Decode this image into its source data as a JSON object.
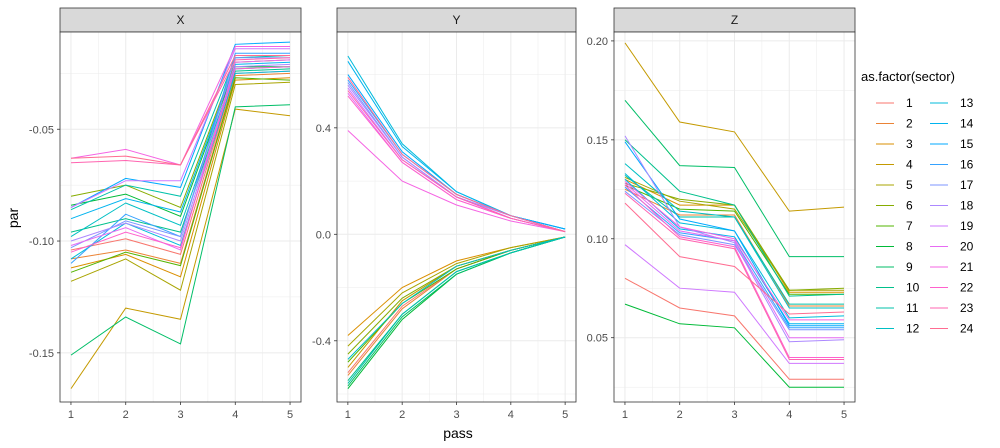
{
  "chart_data": {
    "type": "line",
    "xlabel": "pass",
    "ylabel": "par",
    "x": [
      1,
      2,
      3,
      4,
      5
    ],
    "legend": {
      "title": "as.factor(sector)",
      "placement": "right",
      "entries": [
        "1",
        "2",
        "3",
        "4",
        "5",
        "6",
        "7",
        "8",
        "9",
        "10",
        "11",
        "12",
        "13",
        "14",
        "15",
        "16",
        "17",
        "18",
        "19",
        "20",
        "21",
        "22",
        "23",
        "24"
      ]
    },
    "colors": [
      "#F8766D",
      "#EB8335",
      "#DA8F00",
      "#C49A00",
      "#A9A400",
      "#86AC00",
      "#53B400",
      "#00BA38",
      "#00BE67",
      "#00C08B",
      "#00C1AA",
      "#00BFC4",
      "#00BBDB",
      "#00B4EF",
      "#00A9FF",
      "#35A2FF",
      "#7C96FF",
      "#AC88FF",
      "#CF78FF",
      "#E76BF3",
      "#F564E3",
      "#FF61CC",
      "#FF64B0",
      "#FF6C91"
    ],
    "grid": true,
    "panels": [
      {
        "strip": "X",
        "ylim": [
          -0.172,
          -0.0065
        ],
        "yticks": [
          -0.15,
          -0.1,
          -0.05
        ],
        "ytick_labels": [
          "-0.15",
          "-0.10",
          "-0.05"
        ],
        "series": [
          {
            "name": "1",
            "values": [
              -0.104,
              -0.099,
              -0.106,
              -0.025,
              -0.024
            ]
          },
          {
            "name": "2",
            "values": [
              -0.108,
              -0.104,
              -0.11,
              -0.026,
              -0.025
            ]
          },
          {
            "name": "3",
            "values": [
              -0.112,
              -0.106,
              -0.116,
              -0.028,
              -0.027
            ]
          },
          {
            "name": "4",
            "values": [
              -0.166,
              -0.13,
              -0.135,
              -0.041,
              -0.044
            ]
          },
          {
            "name": "5",
            "values": [
              -0.118,
              -0.108,
              -0.122,
              -0.03,
              -0.029
            ]
          },
          {
            "name": "6",
            "values": [
              -0.08,
              -0.075,
              -0.085,
              -0.02,
              -0.019
            ]
          },
          {
            "name": "7",
            "values": [
              -0.114,
              -0.105,
              -0.111,
              -0.027,
              -0.028
            ]
          },
          {
            "name": "8",
            "values": [
              -0.084,
              -0.079,
              -0.089,
              -0.022,
              -0.022
            ]
          },
          {
            "name": "9",
            "values": [
              -0.151,
              -0.134,
              -0.146,
              -0.04,
              -0.039
            ]
          },
          {
            "name": "10",
            "values": [
              -0.096,
              -0.09,
              -0.096,
              -0.024,
              -0.023
            ]
          },
          {
            "name": "11",
            "values": [
              -0.086,
              -0.075,
              -0.08,
              -0.018,
              -0.017
            ]
          },
          {
            "name": "12",
            "values": [
              -0.098,
              -0.083,
              -0.093,
              -0.023,
              -0.022
            ]
          },
          {
            "name": "13",
            "values": [
              -0.108,
              -0.092,
              -0.102,
              -0.025,
              -0.024
            ]
          },
          {
            "name": "14",
            "values": [
              -0.09,
              -0.081,
              -0.087,
              -0.021,
              -0.02
            ]
          },
          {
            "name": "15",
            "values": [
              -0.085,
              -0.072,
              -0.076,
              -0.012,
              -0.011
            ]
          },
          {
            "name": "16",
            "values": [
              -0.11,
              -0.088,
              -0.098,
              -0.016,
              -0.016
            ]
          },
          {
            "name": "17",
            "values": [
              -0.103,
              -0.091,
              -0.098,
              -0.018,
              -0.018
            ]
          },
          {
            "name": "18",
            "values": [
              -0.1,
              -0.092,
              -0.1,
              -0.022,
              -0.021
            ]
          },
          {
            "name": "19",
            "values": [
              -0.085,
              -0.073,
              -0.073,
              -0.014,
              -0.014
            ]
          },
          {
            "name": "20",
            "values": [
              -0.102,
              -0.094,
              -0.104,
              -0.02,
              -0.019
            ]
          },
          {
            "name": "21",
            "values": [
              -0.063,
              -0.059,
              -0.066,
              -0.013,
              -0.013
            ]
          },
          {
            "name": "22",
            "values": [
              -0.105,
              -0.096,
              -0.103,
              -0.023,
              -0.022
            ]
          },
          {
            "name": "23",
            "values": [
              -0.065,
              -0.064,
              -0.066,
              -0.019,
              -0.018
            ]
          },
          {
            "name": "24",
            "values": [
              -0.063,
              -0.062,
              -0.066,
              -0.017,
              -0.017
            ]
          }
        ]
      },
      {
        "strip": "Y",
        "ylim": [
          -0.63,
          0.76
        ],
        "yticks": [
          -0.4,
          0.0,
          0.4
        ],
        "ytick_labels": [
          "-0.4",
          "0.0",
          "0.4"
        ],
        "series": [
          {
            "name": "1",
            "values": [
              -0.52,
              -0.27,
              -0.13,
              -0.06,
              -0.01
            ]
          },
          {
            "name": "2",
            "values": [
              -0.53,
              -0.28,
              -0.13,
              -0.06,
              -0.01
            ]
          },
          {
            "name": "3",
            "values": [
              -0.38,
              -0.2,
              -0.1,
              -0.05,
              -0.01
            ]
          },
          {
            "name": "4",
            "values": [
              -0.5,
              -0.25,
              -0.12,
              -0.06,
              -0.01
            ]
          },
          {
            "name": "5",
            "values": [
              -0.42,
              -0.22,
              -0.11,
              -0.05,
              -0.01
            ]
          },
          {
            "name": "6",
            "values": [
              -0.45,
              -0.24,
              -0.12,
              -0.06,
              -0.01
            ]
          },
          {
            "name": "7",
            "values": [
              -0.48,
              -0.26,
              -0.13,
              -0.06,
              -0.01
            ]
          },
          {
            "name": "8",
            "values": [
              -0.58,
              -0.32,
              -0.15,
              -0.07,
              -0.01
            ]
          },
          {
            "name": "9",
            "values": [
              -0.57,
              -0.31,
              -0.15,
              -0.07,
              -0.01
            ]
          },
          {
            "name": "10",
            "values": [
              -0.55,
              -0.3,
              -0.14,
              -0.07,
              -0.01
            ]
          },
          {
            "name": "11",
            "values": [
              -0.56,
              -0.3,
              -0.14,
              -0.07,
              -0.01
            ]
          },
          {
            "name": "12",
            "values": [
              -0.47,
              -0.26,
              -0.12,
              -0.06,
              -0.01
            ]
          },
          {
            "name": "13",
            "values": [
              0.67,
              0.34,
              0.16,
              0.07,
              0.02
            ]
          },
          {
            "name": "14",
            "values": [
              0.65,
              0.33,
              0.16,
              0.07,
              0.02
            ]
          },
          {
            "name": "15",
            "values": [
              0.6,
              0.31,
              0.15,
              0.07,
              0.02
            ]
          },
          {
            "name": "16",
            "values": [
              0.58,
              0.3,
              0.15,
              0.07,
              0.01
            ]
          },
          {
            "name": "17",
            "values": [
              0.57,
              0.29,
              0.14,
              0.07,
              0.01
            ]
          },
          {
            "name": "18",
            "values": [
              0.56,
              0.29,
              0.14,
              0.07,
              0.01
            ]
          },
          {
            "name": "19",
            "values": [
              0.55,
              0.28,
              0.14,
              0.06,
              0.01
            ]
          },
          {
            "name": "20",
            "values": [
              0.53,
              0.27,
              0.13,
              0.06,
              0.01
            ]
          },
          {
            "name": "21",
            "values": [
              0.39,
              0.2,
              0.11,
              0.05,
              0.01
            ]
          },
          {
            "name": "22",
            "values": [
              0.52,
              0.27,
              0.13,
              0.06,
              0.01
            ]
          },
          {
            "name": "23",
            "values": [
              0.54,
              0.28,
              0.14,
              0.06,
              0.01
            ]
          },
          {
            "name": "24",
            "values": [
              0.59,
              0.3,
              0.15,
              0.07,
              0.01
            ]
          }
        ]
      },
      {
        "strip": "Z",
        "ylim": [
          0.0175,
          0.2045
        ],
        "yticks": [
          0.05,
          0.1,
          0.15,
          0.2
        ],
        "ytick_labels": [
          "0.05",
          "0.10",
          "0.15",
          "0.20"
        ],
        "series": [
          {
            "name": "1",
            "values": [
              0.08,
              0.065,
              0.061,
              0.029,
              0.029
            ]
          },
          {
            "name": "2",
            "values": [
              0.125,
              0.112,
              0.112,
              0.066,
              0.066
            ]
          },
          {
            "name": "3",
            "values": [
              0.13,
              0.117,
              0.117,
              0.073,
              0.073
            ]
          },
          {
            "name": "4",
            "values": [
              0.199,
              0.159,
              0.154,
              0.114,
              0.116
            ]
          },
          {
            "name": "5",
            "values": [
              0.131,
              0.119,
              0.115,
              0.074,
              0.074
            ]
          },
          {
            "name": "6",
            "values": [
              0.128,
              0.12,
              0.117,
              0.074,
              0.075
            ]
          },
          {
            "name": "7",
            "values": [
              0.127,
              0.115,
              0.114,
              0.072,
              0.072
            ]
          },
          {
            "name": "8",
            "values": [
              0.067,
              0.057,
              0.055,
              0.025,
              0.025
            ]
          },
          {
            "name": "9",
            "values": [
              0.17,
              0.137,
              0.136,
              0.091,
              0.091
            ]
          },
          {
            "name": "10",
            "values": [
              0.15,
              0.124,
              0.117,
              0.071,
              0.072
            ]
          },
          {
            "name": "11",
            "values": [
              0.132,
              0.111,
              0.111,
              0.067,
              0.067
            ]
          },
          {
            "name": "12",
            "values": [
              0.138,
              0.114,
              0.111,
              0.065,
              0.065
            ]
          },
          {
            "name": "13",
            "values": [
              0.133,
              0.108,
              0.104,
              0.06,
              0.061
            ]
          },
          {
            "name": "14",
            "values": [
              0.13,
              0.105,
              0.101,
              0.057,
              0.057
            ]
          },
          {
            "name": "15",
            "values": [
              0.149,
              0.11,
              0.104,
              0.056,
              0.056
            ]
          },
          {
            "name": "16",
            "values": [
              0.126,
              0.103,
              0.099,
              0.055,
              0.055
            ]
          },
          {
            "name": "17",
            "values": [
              0.124,
              0.102,
              0.097,
              0.054,
              0.054
            ]
          },
          {
            "name": "18",
            "values": [
              0.152,
              0.106,
              0.098,
              0.048,
              0.049
            ]
          },
          {
            "name": "19",
            "values": [
              0.097,
              0.075,
              0.073,
              0.037,
              0.037
            ]
          },
          {
            "name": "20",
            "values": [
              0.128,
              0.104,
              0.099,
              0.05,
              0.05
            ]
          },
          {
            "name": "21",
            "values": [
              0.129,
              0.106,
              0.1,
              0.059,
              0.059
            ]
          },
          {
            "name": "22",
            "values": [
              0.127,
              0.101,
              0.096,
              0.04,
              0.04
            ]
          },
          {
            "name": "23",
            "values": [
              0.123,
              0.1,
              0.095,
              0.039,
              0.039
            ]
          },
          {
            "name": "24",
            "values": [
              0.118,
              0.091,
              0.086,
              0.062,
              0.063
            ]
          }
        ]
      }
    ]
  }
}
